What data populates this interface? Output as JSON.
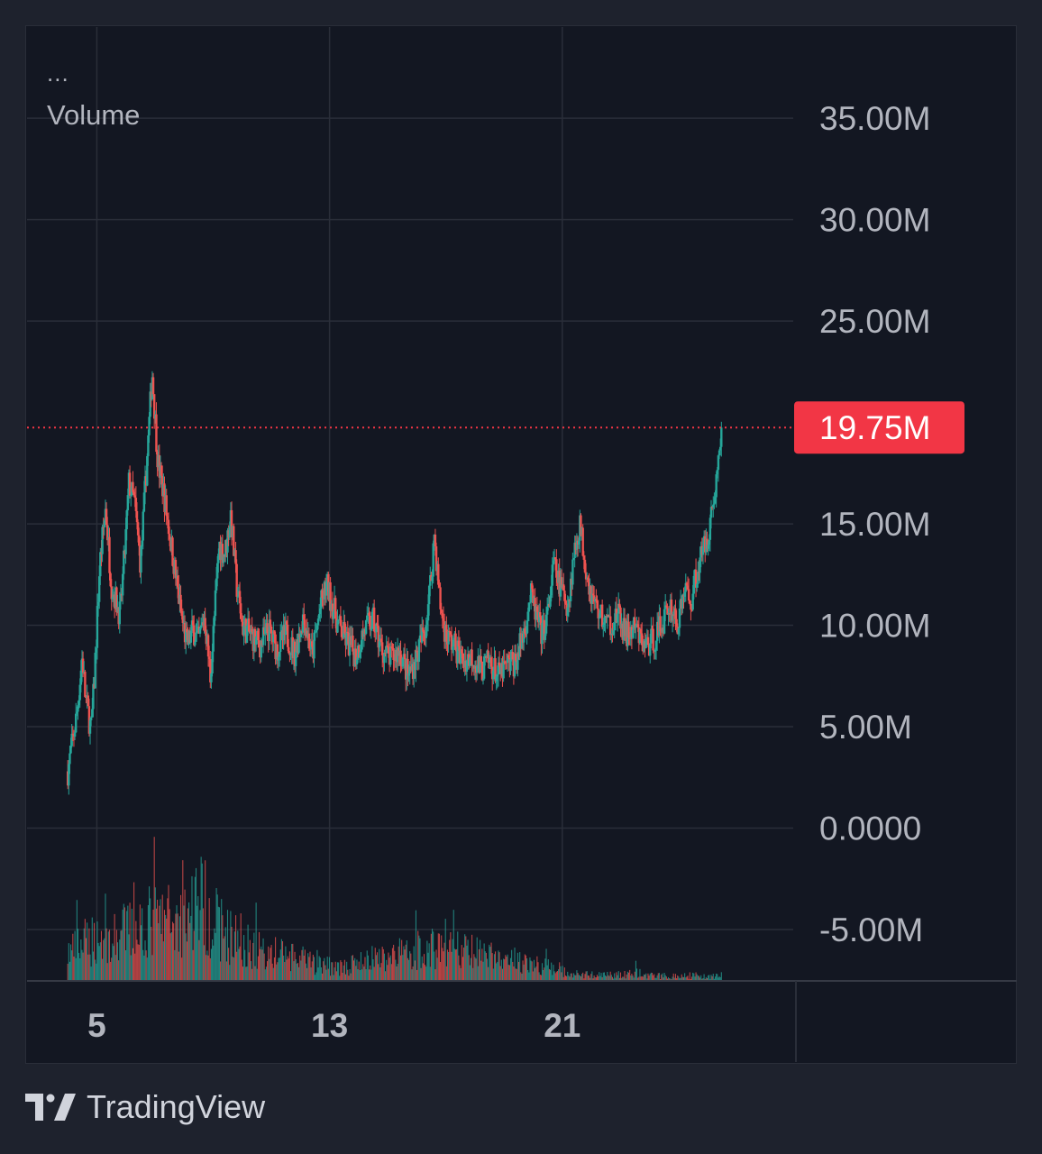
{
  "legend": {
    "dots": "...",
    "title": "Volume"
  },
  "brand": {
    "name": "TradingView",
    "logo_icon": "tradingview-logo-icon"
  },
  "colors": {
    "background": "#131722",
    "outer": "#1e222d",
    "grid": "#2a2e39",
    "up": "#26a69a",
    "down": "#ef5350",
    "last_price": "#f23645",
    "text": "#b2b5be"
  },
  "chart_data": {
    "type": "candlestick",
    "x_ticks": [
      {
        "label": "5",
        "day": 5
      },
      {
        "label": "13",
        "day": 13
      },
      {
        "label": "21",
        "day": 21
      }
    ],
    "y_ticks": [
      {
        "label": "35.00M",
        "value": 35
      },
      {
        "label": "30.00M",
        "value": 30
      },
      {
        "label": "25.00M",
        "value": 25
      },
      {
        "label": "15.00M",
        "value": 15
      },
      {
        "label": "10.00M",
        "value": 10
      },
      {
        "label": "5.00M",
        "value": 5
      },
      {
        "label": "0.0000",
        "value": 0
      },
      {
        "label": "-5.00M",
        "value": -5
      }
    ],
    "ylim": [
      -7.6,
      39.5
    ],
    "xlim": [
      2.6,
      27.7
    ],
    "last_value": {
      "label": "19.75M",
      "value": 19.75
    },
    "series_close": [
      [
        4.0,
        2.8
      ],
      [
        4.3,
        5.5
      ],
      [
        4.5,
        8.5
      ],
      [
        4.6,
        6.5
      ],
      [
        4.8,
        4.8
      ],
      [
        4.9,
        7.0
      ],
      [
        5.1,
        13.0
      ],
      [
        5.3,
        15.8
      ],
      [
        5.5,
        12.0
      ],
      [
        5.8,
        10.5
      ],
      [
        6.0,
        14.5
      ],
      [
        6.1,
        17.0
      ],
      [
        6.3,
        16.0
      ],
      [
        6.5,
        13.0
      ],
      [
        6.8,
        20.0
      ],
      [
        6.9,
        22.5
      ],
      [
        7.1,
        18.0
      ],
      [
        7.3,
        16.5
      ],
      [
        7.5,
        14.5
      ],
      [
        7.7,
        12.5
      ],
      [
        7.9,
        10.5
      ],
      [
        8.1,
        9.0
      ],
      [
        8.3,
        9.8
      ],
      [
        8.5,
        9.2
      ],
      [
        8.7,
        10.5
      ],
      [
        8.9,
        7.5
      ],
      [
        9.0,
        9.5
      ],
      [
        9.2,
        14.0
      ],
      [
        9.4,
        13.5
      ],
      [
        9.6,
        15.5
      ],
      [
        9.8,
        12.0
      ],
      [
        10.0,
        10.0
      ],
      [
        10.3,
        9.5
      ],
      [
        10.6,
        9.0
      ],
      [
        10.9,
        9.8
      ],
      [
        11.2,
        8.8
      ],
      [
        11.5,
        9.6
      ],
      [
        11.8,
        8.6
      ],
      [
        12.1,
        10.5
      ],
      [
        12.4,
        8.5
      ],
      [
        12.7,
        11.0
      ],
      [
        12.9,
        12.0
      ],
      [
        13.1,
        11.0
      ],
      [
        13.3,
        10.0
      ],
      [
        13.6,
        9.2
      ],
      [
        13.9,
        8.5
      ],
      [
        14.2,
        9.8
      ],
      [
        14.5,
        10.2
      ],
      [
        14.8,
        8.8
      ],
      [
        15.1,
        8.3
      ],
      [
        15.4,
        8.8
      ],
      [
        15.7,
        7.5
      ],
      [
        16.0,
        8.5
      ],
      [
        16.3,
        10.0
      ],
      [
        16.5,
        12.5
      ],
      [
        16.6,
        14.5
      ],
      [
        16.8,
        11.0
      ],
      [
        17.0,
        9.5
      ],
      [
        17.3,
        9.0
      ],
      [
        17.6,
        8.2
      ],
      [
        17.9,
        8.5
      ],
      [
        18.2,
        7.8
      ],
      [
        18.5,
        8.2
      ],
      [
        18.8,
        7.5
      ],
      [
        19.1,
        8.0
      ],
      [
        19.4,
        8.2
      ],
      [
        19.7,
        9.8
      ],
      [
        19.9,
        11.5
      ],
      [
        20.1,
        10.5
      ],
      [
        20.3,
        9.5
      ],
      [
        20.5,
        10.5
      ],
      [
        20.7,
        13.0
      ],
      [
        20.9,
        12.0
      ],
      [
        21.2,
        11.0
      ],
      [
        21.4,
        13.5
      ],
      [
        21.6,
        15.0
      ],
      [
        21.8,
        13.0
      ],
      [
        22.0,
        11.5
      ],
      [
        22.3,
        10.5
      ],
      [
        22.6,
        10.0
      ],
      [
        22.9,
        10.5
      ],
      [
        23.2,
        9.5
      ],
      [
        23.5,
        9.8
      ],
      [
        23.8,
        9.0
      ],
      [
        24.1,
        9.2
      ],
      [
        24.4,
        10.0
      ],
      [
        24.7,
        11.0
      ],
      [
        25.0,
        10.0
      ],
      [
        25.2,
        12.0
      ],
      [
        25.4,
        11.0
      ],
      [
        25.6,
        12.5
      ],
      [
        25.8,
        13.5
      ],
      [
        26.0,
        14.5
      ],
      [
        26.2,
        16.0
      ],
      [
        26.4,
        18.5
      ],
      [
        26.5,
        19.75
      ]
    ],
    "volume_profile": [
      [
        4.0,
        0.25
      ],
      [
        5.0,
        0.4
      ],
      [
        5.5,
        0.35
      ],
      [
        6.0,
        0.45
      ],
      [
        7.0,
        0.55
      ],
      [
        8.0,
        0.55
      ],
      [
        8.5,
        0.75
      ],
      [
        9.0,
        0.55
      ],
      [
        9.6,
        0.4
      ],
      [
        10.5,
        0.28
      ],
      [
        11.5,
        0.22
      ],
      [
        12.5,
        0.15
      ],
      [
        13.5,
        0.12
      ],
      [
        14.5,
        0.2
      ],
      [
        15.5,
        0.25
      ],
      [
        16.5,
        0.3
      ],
      [
        17.5,
        0.28
      ],
      [
        18.5,
        0.22
      ],
      [
        19.5,
        0.18
      ],
      [
        20.5,
        0.12
      ],
      [
        21.5,
        0.06
      ],
      [
        22.5,
        0.05
      ],
      [
        23.5,
        0.07
      ],
      [
        24.5,
        0.04
      ],
      [
        25.5,
        0.05
      ],
      [
        26.5,
        0.05
      ]
    ],
    "volume_range": [
      0,
      6.0
    ]
  }
}
